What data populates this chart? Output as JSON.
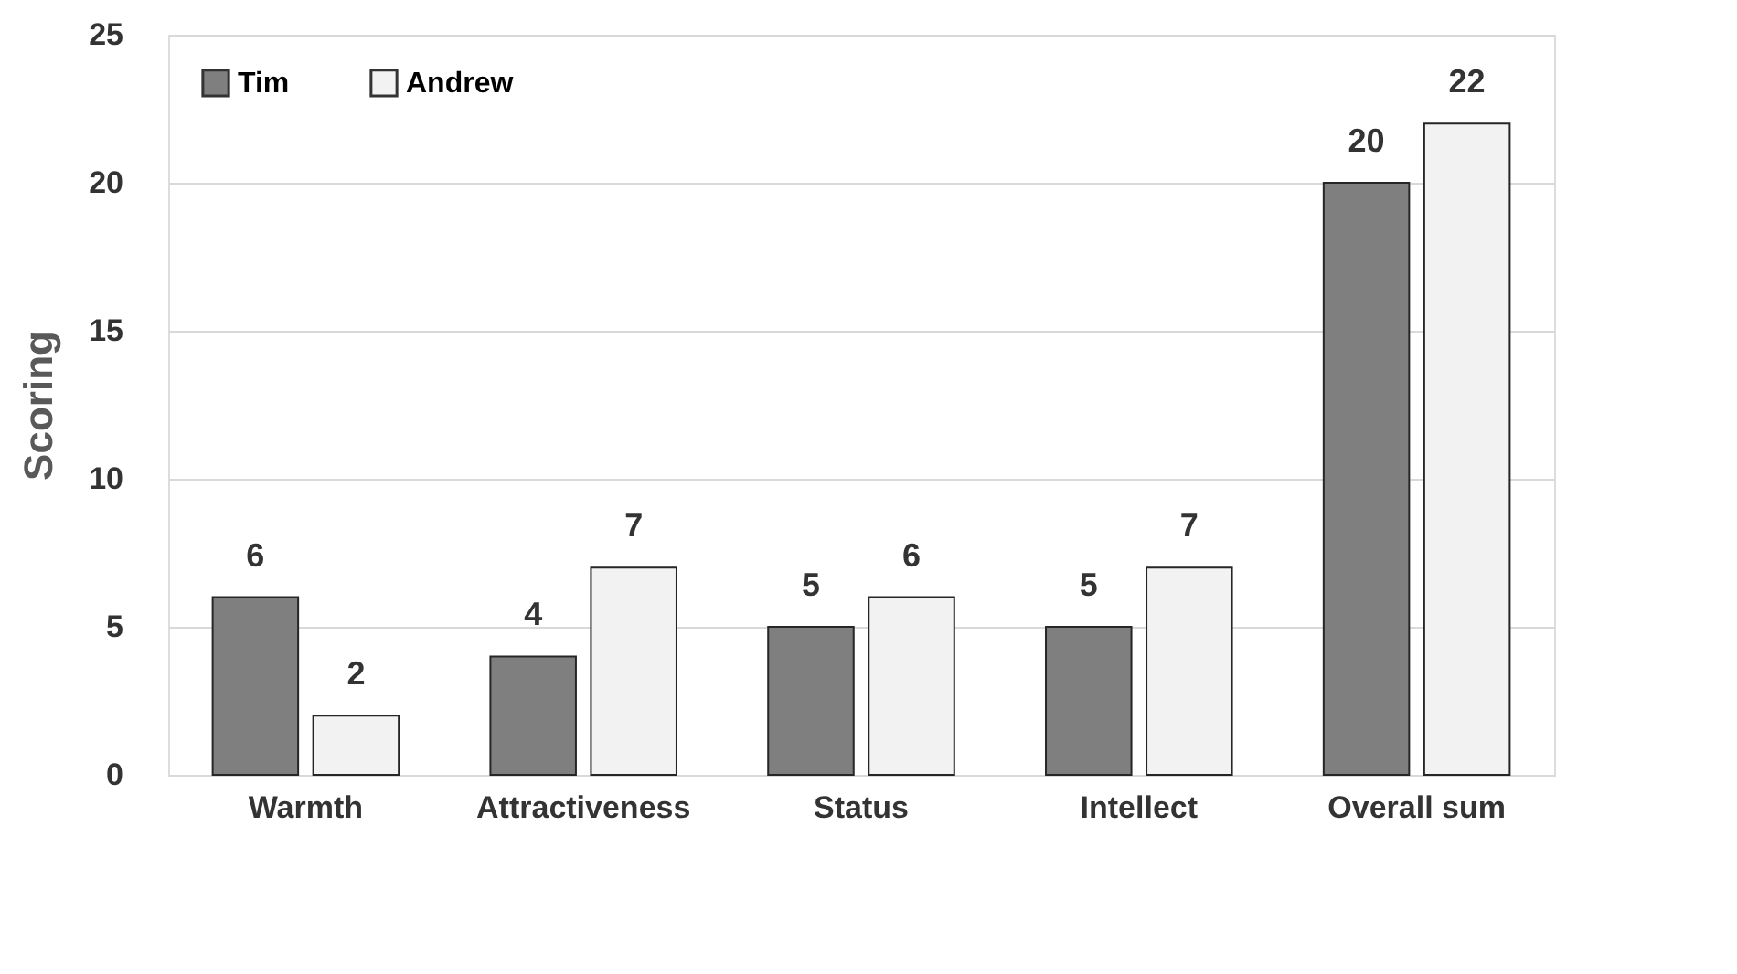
{
  "chart_data": {
    "type": "bar",
    "ylabel": "Scoring",
    "categories": [
      "Warmth",
      "Attractiveness",
      "Status",
      "Intellect",
      "Overall sum"
    ],
    "series": [
      {
        "name": "Tim",
        "color": "#7f7f7f",
        "values": [
          6,
          4,
          5,
          5,
          20
        ]
      },
      {
        "name": "Andrew",
        "color": "#f2f2f2",
        "values": [
          2,
          7,
          6,
          7,
          22
        ]
      }
    ],
    "ylim": [
      0,
      25
    ],
    "yticks": [
      0,
      5,
      10,
      15,
      20,
      25
    ],
    "grid": "y",
    "legend": "top left",
    "data_labels": true
  }
}
